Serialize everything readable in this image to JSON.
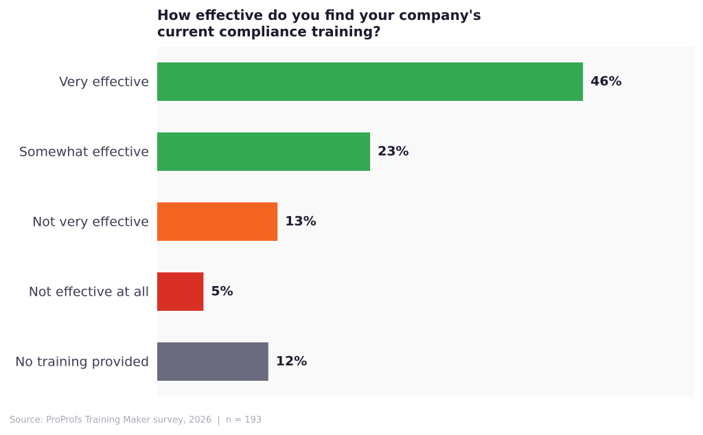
{
  "chart_data": {
    "type": "bar",
    "orientation": "horizontal",
    "title": "How effective do you find your company's current compliance training?",
    "categories": [
      "Very effective",
      "Somewhat effective",
      "Not very effective",
      "Not effective at all",
      "No training provided"
    ],
    "values": [
      46,
      23,
      13,
      5,
      12
    ],
    "value_labels": [
      "46%",
      "23%",
      "13%",
      "5%",
      "12%"
    ],
    "colors": [
      "#34a853",
      "#34a853",
      "#f46524",
      "#d93025",
      "#6b6b80"
    ],
    "xlim": [
      0,
      58
    ],
    "source": "Source: ProProfs Training Maker survey, 2026  |  n = 193"
  }
}
